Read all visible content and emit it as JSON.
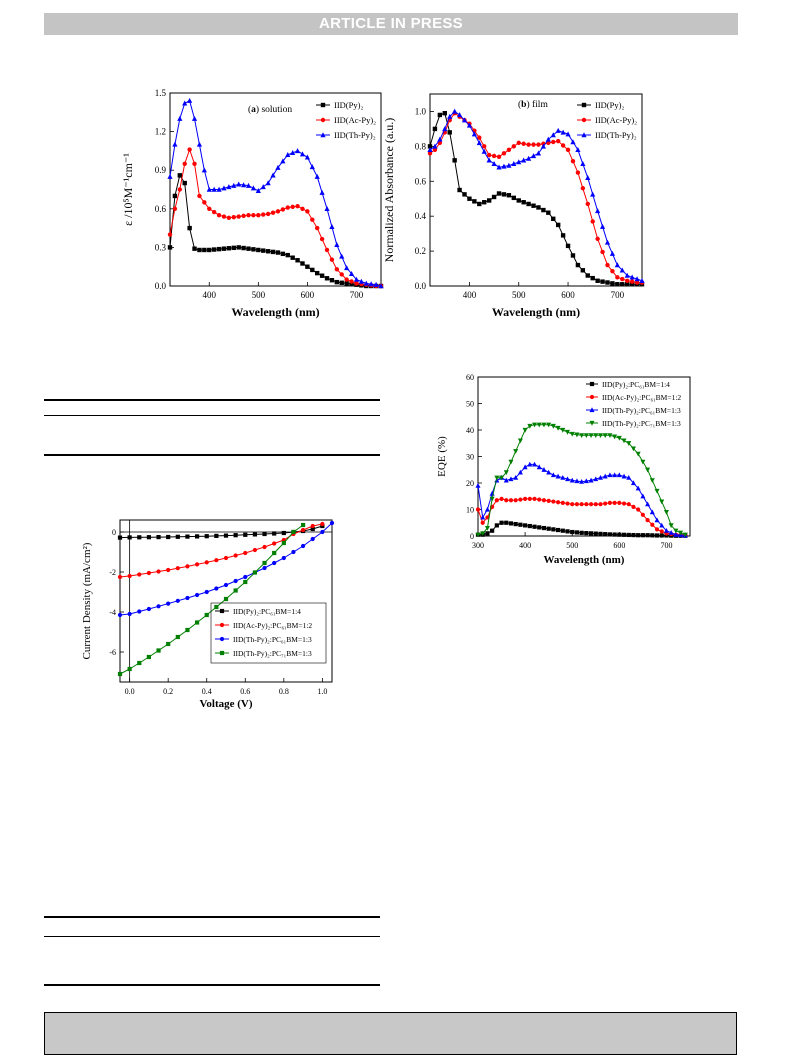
{
  "header": {
    "banner": "ARTICLE IN PRESS"
  },
  "chart_data": [
    {
      "type": "line",
      "panel": "(a) solution",
      "panel_letter": "a",
      "panel_text": "solution",
      "xlabel": "Wavelength (nm)",
      "ylabel": "ε /10⁵M⁻¹cm⁻¹",
      "xlim": [
        320,
        750
      ],
      "ylim": [
        0,
        1.5
      ],
      "xticks": [
        400,
        500,
        600,
        700
      ],
      "yticks": [
        0.0,
        0.3,
        0.6,
        0.9,
        1.2,
        1.5
      ],
      "legend_position": "top-right",
      "series": [
        {
          "name": "IID(Py)₂",
          "color": "#000000",
          "marker": "square",
          "x": [
            320,
            330,
            340,
            350,
            360,
            370,
            380,
            400,
            430,
            460,
            480,
            500,
            520,
            540,
            560,
            580,
            600,
            620,
            640,
            660,
            680,
            700,
            720,
            740,
            750
          ],
          "y": [
            0.3,
            0.7,
            0.86,
            0.8,
            0.45,
            0.29,
            0.28,
            0.28,
            0.29,
            0.3,
            0.29,
            0.28,
            0.27,
            0.26,
            0.24,
            0.2,
            0.15,
            0.1,
            0.06,
            0.03,
            0.02,
            0.01,
            0.0,
            0.0,
            0.0
          ]
        },
        {
          "name": "IID(Ac-Py)₂",
          "color": "#ff0000",
          "marker": "circle",
          "x": [
            320,
            330,
            340,
            350,
            360,
            370,
            380,
            400,
            420,
            440,
            460,
            480,
            500,
            520,
            540,
            560,
            580,
            600,
            620,
            640,
            660,
            680,
            700,
            720,
            740,
            750
          ],
          "y": [
            0.4,
            0.6,
            0.75,
            0.95,
            1.06,
            0.95,
            0.7,
            0.6,
            0.55,
            0.53,
            0.54,
            0.55,
            0.55,
            0.56,
            0.58,
            0.61,
            0.62,
            0.58,
            0.45,
            0.28,
            0.13,
            0.05,
            0.02,
            0.01,
            0.0,
            0.0
          ]
        },
        {
          "name": "IID(Th-Py)₂",
          "color": "#0000ff",
          "marker": "triangle",
          "x": [
            320,
            330,
            340,
            350,
            360,
            370,
            380,
            390,
            400,
            420,
            440,
            460,
            480,
            500,
            520,
            540,
            560,
            580,
            600,
            620,
            640,
            660,
            680,
            700,
            720,
            740,
            750
          ],
          "y": [
            0.85,
            1.1,
            1.3,
            1.42,
            1.44,
            1.3,
            1.1,
            0.9,
            0.75,
            0.75,
            0.77,
            0.79,
            0.78,
            0.74,
            0.8,
            0.92,
            1.02,
            1.05,
            1.0,
            0.85,
            0.6,
            0.32,
            0.14,
            0.05,
            0.02,
            0.01,
            0.0
          ]
        }
      ]
    },
    {
      "type": "line",
      "panel": "(b) film",
      "panel_letter": "b",
      "panel_text": "film",
      "xlabel": "Wavelength (nm)",
      "ylabel": "Normalized Absorbance (a.u.)",
      "xlim": [
        320,
        750
      ],
      "ylim": [
        0,
        1.1
      ],
      "xticks": [
        400,
        500,
        600,
        700
      ],
      "yticks": [
        0.0,
        0.2,
        0.4,
        0.6,
        0.8,
        1.0
      ],
      "legend_position": "top-right",
      "series": [
        {
          "name": "IID(Py)₂",
          "color": "#000000",
          "marker": "square",
          "x": [
            320,
            330,
            340,
            350,
            360,
            370,
            380,
            400,
            420,
            440,
            460,
            480,
            500,
            520,
            540,
            560,
            580,
            600,
            620,
            640,
            660,
            680,
            700,
            720,
            740,
            750
          ],
          "y": [
            0.8,
            0.9,
            0.98,
            0.99,
            0.88,
            0.72,
            0.55,
            0.5,
            0.47,
            0.49,
            0.53,
            0.52,
            0.49,
            0.47,
            0.45,
            0.42,
            0.35,
            0.23,
            0.12,
            0.06,
            0.03,
            0.02,
            0.01,
            0.01,
            0.01,
            0.01
          ]
        },
        {
          "name": "IID(Ac-Py)₂",
          "color": "#ff0000",
          "marker": "circle",
          "x": [
            320,
            330,
            340,
            350,
            360,
            370,
            380,
            400,
            420,
            440,
            460,
            480,
            500,
            520,
            540,
            560,
            580,
            600,
            620,
            640,
            660,
            680,
            700,
            720,
            740,
            750
          ],
          "y": [
            0.76,
            0.78,
            0.82,
            0.88,
            0.95,
            0.99,
            0.97,
            0.93,
            0.85,
            0.75,
            0.74,
            0.78,
            0.82,
            0.81,
            0.81,
            0.82,
            0.83,
            0.78,
            0.65,
            0.47,
            0.27,
            0.12,
            0.05,
            0.03,
            0.02,
            0.02
          ]
        },
        {
          "name": "IID(Th-Py)₂",
          "color": "#0000ff",
          "marker": "triangle",
          "x": [
            320,
            330,
            340,
            350,
            360,
            370,
            380,
            400,
            420,
            440,
            460,
            480,
            500,
            520,
            540,
            560,
            580,
            600,
            620,
            640,
            660,
            680,
            700,
            720,
            740,
            750
          ],
          "y": [
            0.78,
            0.8,
            0.84,
            0.9,
            0.97,
            1.0,
            0.98,
            0.92,
            0.82,
            0.72,
            0.68,
            0.69,
            0.71,
            0.73,
            0.76,
            0.84,
            0.89,
            0.87,
            0.78,
            0.62,
            0.43,
            0.25,
            0.12,
            0.06,
            0.04,
            0.03
          ]
        }
      ]
    },
    {
      "type": "line",
      "xlabel": "Voltage (V)",
      "ylabel": "Current Density (mA/cm²)",
      "xlim": [
        -0.05,
        1.05
      ],
      "ylim": [
        -7.5,
        0.6
      ],
      "xticks": [
        0.0,
        0.2,
        0.4,
        0.6,
        0.8,
        1.0
      ],
      "xtick_labels": [
        "0.0",
        "0.2",
        "0.4",
        "0.6",
        "0.8",
        "1.0"
      ],
      "yticks": [
        0,
        -2,
        -4,
        -6
      ],
      "legend_position": "bottom-right",
      "series": [
        {
          "name": "IID(Py)₂:PC₆₁BM=1:4",
          "color": "#000000",
          "marker": "square",
          "x": [
            -0.05,
            0.0,
            0.1,
            0.2,
            0.3,
            0.4,
            0.5,
            0.6,
            0.7,
            0.8,
            0.9,
            0.95,
            1.0
          ],
          "y": [
            -0.28,
            -0.27,
            -0.26,
            -0.25,
            -0.23,
            -0.21,
            -0.18,
            -0.14,
            -0.1,
            -0.05,
            0.05,
            0.15,
            0.3
          ]
        },
        {
          "name": "IID(Ac-Py)₂:PC₆₁BM=1:2",
          "color": "#ff0000",
          "marker": "circle",
          "x": [
            -0.05,
            0.0,
            0.1,
            0.2,
            0.3,
            0.4,
            0.5,
            0.6,
            0.7,
            0.8,
            0.85,
            0.9,
            0.95,
            1.0
          ],
          "y": [
            -2.25,
            -2.2,
            -2.05,
            -1.9,
            -1.72,
            -1.52,
            -1.3,
            -1.05,
            -0.75,
            -0.4,
            -0.1,
            0.1,
            0.3,
            0.4
          ]
        },
        {
          "name": "IID(Th-Py)₂:PC₆₁BM=1:3",
          "color": "#0000ff",
          "marker": "circle",
          "x": [
            -0.05,
            0.0,
            0.1,
            0.2,
            0.3,
            0.4,
            0.5,
            0.6,
            0.7,
            0.8,
            0.9,
            1.0,
            1.05
          ],
          "y": [
            -4.15,
            -4.1,
            -3.85,
            -3.58,
            -3.3,
            -3.0,
            -2.65,
            -2.25,
            -1.8,
            -1.3,
            -0.7,
            0.0,
            0.45
          ]
        },
        {
          "name": "IID(Th-Py)₂:PC₇₁BM=1:3",
          "color": "#008000",
          "marker": "square",
          "x": [
            -0.05,
            0.0,
            0.1,
            0.2,
            0.3,
            0.4,
            0.5,
            0.6,
            0.7,
            0.8,
            0.85,
            0.9
          ],
          "y": [
            -7.1,
            -6.85,
            -6.25,
            -5.6,
            -4.9,
            -4.15,
            -3.35,
            -2.5,
            -1.55,
            -0.55,
            0.0,
            0.35
          ]
        }
      ]
    },
    {
      "type": "line",
      "xlabel": "Wavelength (nm)",
      "ylabel": "EQE (%)",
      "xlim": [
        300,
        750
      ],
      "ylim": [
        0,
        60
      ],
      "xticks": [
        300,
        400,
        500,
        600,
        700
      ],
      "yticks": [
        0,
        10,
        20,
        30,
        40,
        50,
        60
      ],
      "legend_position": "top-right",
      "series": [
        {
          "name": "IID(Py)₂:PC₆₁BM=1:4",
          "color": "#000000",
          "marker": "square",
          "x": [
            300,
            310,
            320,
            330,
            340,
            350,
            360,
            380,
            400,
            420,
            440,
            460,
            480,
            500,
            520,
            540,
            560,
            580,
            600,
            620,
            640,
            660,
            680,
            700,
            720,
            740
          ],
          "y": [
            0.5,
            0.5,
            1,
            2,
            4,
            5,
            5,
            4.5,
            4,
            3.5,
            3,
            2.5,
            2,
            1.5,
            1.2,
            1,
            0.8,
            0.6,
            0.5,
            0.4,
            0.3,
            0.3,
            0.2,
            0.2,
            0.1,
            0.1
          ]
        },
        {
          "name": "IID(Ac-Py)₂:PC₆₁BM=1:2",
          "color": "#ff0000",
          "marker": "circle",
          "x": [
            300,
            310,
            320,
            330,
            340,
            350,
            360,
            380,
            400,
            420,
            440,
            460,
            480,
            500,
            520,
            540,
            560,
            580,
            600,
            620,
            640,
            660,
            680,
            700,
            720,
            740
          ],
          "y": [
            10,
            5,
            7,
            11,
            13.5,
            14,
            13.5,
            13.5,
            14,
            14,
            13.5,
            13,
            12.5,
            12,
            12,
            12,
            12,
            12.5,
            12.5,
            12,
            10,
            6,
            2.5,
            1,
            0.5,
            0.2
          ]
        },
        {
          "name": "IID(Th-Py)₂:PC₆₁BM=1:3",
          "color": "#0000ff",
          "marker": "triangle",
          "x": [
            300,
            310,
            320,
            330,
            340,
            350,
            360,
            380,
            400,
            410,
            420,
            430,
            440,
            460,
            480,
            500,
            520,
            540,
            560,
            580,
            600,
            620,
            640,
            660,
            680,
            700,
            720,
            740
          ],
          "y": [
            19,
            7,
            10,
            16,
            21,
            22,
            21,
            22,
            26,
            27,
            27,
            26,
            25,
            23,
            22,
            21,
            20.5,
            21,
            22,
            23,
            23,
            22,
            18,
            12,
            6,
            2,
            0.5,
            0.2
          ]
        },
        {
          "name": "IID(Th-Py)₂:PC₇₁BM=1:3",
          "color": "#008000",
          "marker": "triangle-down",
          "x": [
            300,
            310,
            320,
            330,
            340,
            350,
            360,
            370,
            380,
            390,
            400,
            410,
            420,
            430,
            440,
            450,
            460,
            480,
            500,
            520,
            540,
            560,
            580,
            600,
            620,
            640,
            660,
            680,
            700,
            710,
            720,
            740
          ],
          "y": [
            0.5,
            1,
            3,
            14,
            22,
            22,
            24,
            28,
            32,
            36,
            40,
            41.5,
            42,
            42,
            42,
            42,
            41.5,
            40,
            38.5,
            38,
            38,
            38,
            38,
            37,
            35,
            31,
            25,
            17,
            9,
            4,
            2,
            0.5
          ]
        }
      ]
    }
  ]
}
